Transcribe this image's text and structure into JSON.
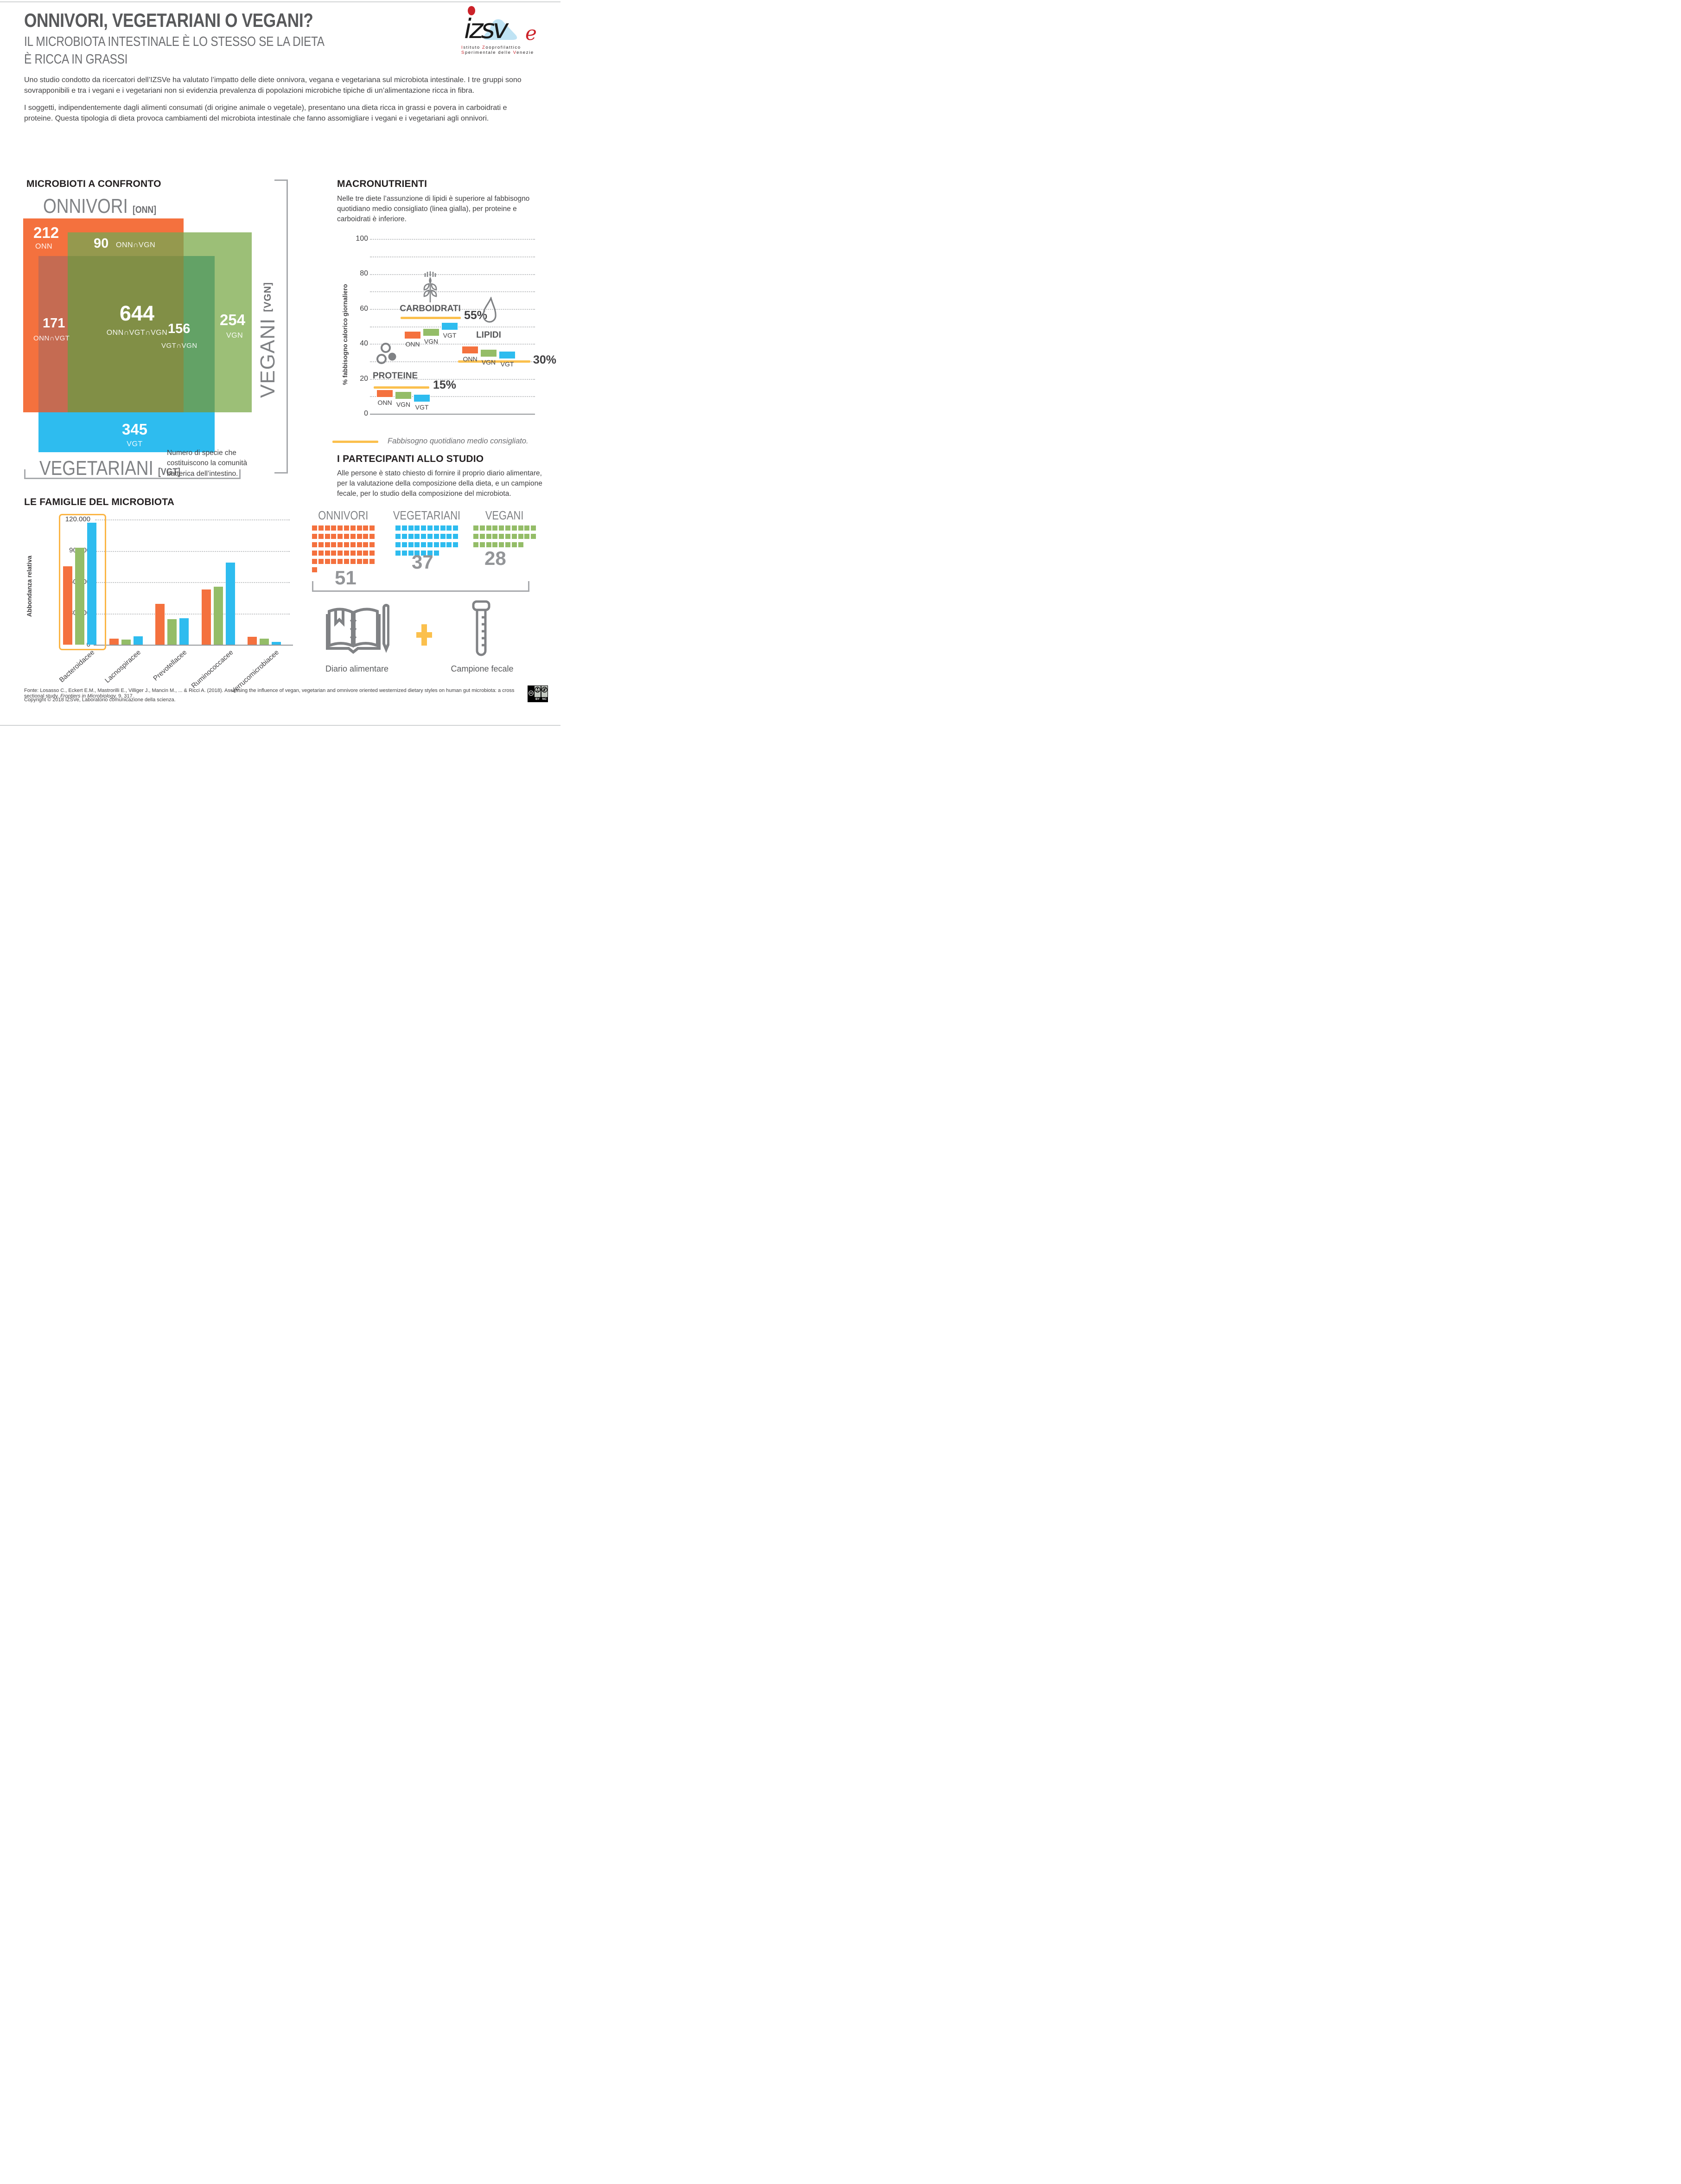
{
  "header": {
    "title": "ONNIVORI, VEGETARIANI O VEGANI?",
    "subtitle1": "IL MICROBIOTA INTESTINALE È LO STESSO SE LA DIETA",
    "subtitle2": "È RICCA IN GRASSI",
    "logo": {
      "wordmark": "izsv",
      "wordmark_e": "e",
      "l1a": "I",
      "l1b": "stituto ",
      "l1c": "Z",
      "l1d": "ooprofilattico",
      "l2a": "S",
      "l2b": "perimentale delle ",
      "l2c": "V",
      "l2d": "enezie"
    }
  },
  "intro": {
    "p1": "Uno studio condotto da ricercatori dell’IZSVe ha valutato l’impatto delle diete onnivora, vegana e vegetariana sul microbiota intestinale. I tre gruppi sono sovrapponibili e tra i vegani e i vegetariani non si evidenzia prevalenza di popolazioni microbiche tipiche di un’alimentazione ricca in fibra.",
    "p2": "I soggetti, indipendentemente dagli alimenti consumati (di origine animale o vegetale), presentano una dieta ricca in grassi e povera in carboidrati e proteine. Questa tipologia di dieta provoca cambiamenti del microbiota intestinale che fanno assomigliare i vegani e i vegetariani agli onnivori."
  },
  "venn": {
    "title": "MICROBIOTI A CONFRONTO",
    "set_onn": "ONNIVORI",
    "tag_onn": "[ONN]",
    "set_vgn": "VEGANI",
    "tag_vgn": "[VGN]",
    "set_vgt": "VEGETARIANI",
    "tag_vgt": "[VGT]",
    "regions": [
      {
        "value": "212",
        "label": "ONN"
      },
      {
        "value": "90",
        "label": "ONN∩VGN"
      },
      {
        "value": "171",
        "label": "ONN∩VGT"
      },
      {
        "value": "644",
        "label": "ONN∩VGT∩VGN"
      },
      {
        "value": "156",
        "label": "VGT∩VGN"
      },
      {
        "value": "254",
        "label": "VGN"
      },
      {
        "value": "345",
        "label": "VGT"
      }
    ],
    "caption_lines": [
      "Numero di specie che",
      "costituiscono la comunità",
      "batterica dell’intestino."
    ]
  },
  "macro": {
    "title": "MACRONUTRIENTI",
    "description": "Nelle tre diete l’assunzione di lipidi è superiore al fabbisogno quotidiano medio consigliato (linea gialla), per proteine e carboidrati è inferiore.",
    "y_label": "% fabbisogno calorico giornaliero",
    "y_ticks": [
      "0",
      "20",
      "40",
      "60",
      "80",
      "100"
    ],
    "legend": "Fabbisogno quotidiano medio consigliato."
  },
  "participants": {
    "title": "I PARTECIPANTI ALLO STUDIO",
    "description": "Alle persone è stato chiesto di fornire il proprio diario alimentare, per la valutazione della composizione della dieta, e un campione fecale, per lo studio della composizione del microbiota.",
    "diario_label": "Diario alimentare",
    "campione_label": "Campione fecale"
  },
  "families": {
    "title": "LE FAMIGLIE DEL MICROBIOTA",
    "y_label": "Abbondanza relativa",
    "y_ticks": [
      "0",
      "30.000",
      "60.000",
      "90.000",
      "120.000"
    ],
    "categories": [
      "Bacteroidacee",
      "Lacnospiracee",
      "Prevotellacee",
      "Ruminococcacee",
      "Verrucomicrobiacee"
    ]
  },
  "footer": {
    "fonte_prefix": "Fonte: Losasso C., Eckert E.M., Mastrorilli E., Villiger J., Mancin M., ... & Ricci A. (2018). Assessing the influence of vegan, vegetarian and omnivore oriented westernized dietary styles on human gut microbiota: a cross sectional study. ",
    "fonte_italic": "Frontiers in Microbiology,",
    "fonte_suffix": " 9, 317.",
    "copyright": "Copyright © 2018 IZSVe, Laboratorio comunicazione della scienza.",
    "cc1": "cc",
    "cc_by": "BY",
    "cc_nc": "NC"
  },
  "colors": {
    "onn_orange": "#F4713E",
    "vgn_green": "#94BD68",
    "vgt_blue": "#2EBCEF",
    "venn_green_only": "#9CBF77",
    "venn_onn_vgn": "#95994E",
    "venn_onn_vgt": "#C56B52",
    "venn_vgt_vgn": "#63A266",
    "venn_center": "#818F46",
    "reference_yellow": "#FBC04D",
    "highlight_yellow": "#FBB545",
    "title_gray": "#58595B",
    "light_gray": "#808285",
    "logo_red": "#CC2229",
    "logo_blue": "#BFE3F4"
  },
  "chart_data": [
    {
      "type": "venn",
      "title": "MICROBIOTI A CONFRONTO",
      "sets": [
        "ONNIVORI [ONN]",
        "VEGETARIANI [VGT]",
        "VEGANI [VGN]"
      ],
      "regions": {
        "ONN": 212,
        "VGN": 254,
        "VGT": 345,
        "ONN∩VGN": 90,
        "ONN∩VGT": 171,
        "VGT∩VGN": 156,
        "ONN∩VGT∩VGN": 644
      },
      "note": "Numero di specie che costituiscono la comunità batterica dell'intestino."
    },
    {
      "type": "bar",
      "subtype": "floating-segments",
      "title": "MACRONUTRIENTI",
      "ylabel": "% fabbisogno calorico giornaliero",
      "ylim": [
        0,
        100
      ],
      "grid": "dotted every 10",
      "groups": [
        {
          "name": "PROTEINE",
          "ref": 15,
          "ref_label": "15%",
          "bars": [
            {
              "k": "ONN",
              "top": 13.5
            },
            {
              "k": "VGN",
              "top": 12.5
            },
            {
              "k": "VGT",
              "top": 11
            }
          ]
        },
        {
          "name": "CARBOIDRATI",
          "ref": 55,
          "ref_label": "55%",
          "bars": [
            {
              "k": "ONN",
              "top": 47
            },
            {
              "k": "VGN",
              "top": 48.5
            },
            {
              "k": "VGT",
              "top": 52
            }
          ]
        },
        {
          "name": "LIPIDI",
          "ref": 30,
          "ref_label": "30%",
          "bars": [
            {
              "k": "ONN",
              "top": 38.5
            },
            {
              "k": "VGN",
              "top": 36.5
            },
            {
              "k": "VGT",
              "top": 35.5
            }
          ]
        }
      ],
      "legend": "Fabbisogno quotidiano medio consigliato."
    },
    {
      "type": "bar",
      "title": "LE FAMIGLIE DEL MICROBIOTA",
      "ylabel": "Abbondanza relativa",
      "ylim": [
        0,
        120000
      ],
      "categories": [
        "Bacteroidacee",
        "Lacnospiracee",
        "Prevotellacee",
        "Ruminococcacee",
        "Verrucomicrobiacee"
      ],
      "series": [
        {
          "name": "ONN",
          "values": [
            75000,
            6000,
            39000,
            53000,
            7500
          ]
        },
        {
          "name": "VGN",
          "values": [
            93000,
            5000,
            24500,
            55500,
            6000
          ]
        },
        {
          "name": "VGT",
          "values": [
            117000,
            8000,
            25500,
            78500,
            2500
          ]
        }
      ],
      "highlight": "Bacteroidacee"
    },
    {
      "type": "waffle",
      "title": "I PARTECIPANTI ALLO STUDIO",
      "groups": [
        {
          "name": "ONNIVORI",
          "count": "51",
          "rows": [
            10,
            10,
            10,
            10,
            10,
            1
          ]
        },
        {
          "name": "VEGETARIANI",
          "count": "37",
          "rows": [
            10,
            10,
            10,
            7
          ]
        },
        {
          "name": "VEGANI",
          "count": "28",
          "rows": [
            10,
            10,
            8
          ]
        }
      ]
    }
  ]
}
